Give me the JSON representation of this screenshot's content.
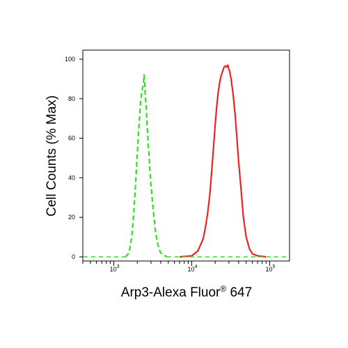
{
  "chart_data": {
    "type": "line",
    "title": "",
    "xlabel": "Arp3-Alexa Fluor",
    "xlabel_superscript": "®",
    "xlabel_suffix": " 647",
    "ylabel": "Cell Counts (% Max)",
    "x_scale": "log",
    "xlim": [
      400,
      180000
    ],
    "ylim": [
      0,
      105
    ],
    "x_ticks": [
      {
        "value": 1000,
        "base": "10",
        "exp": "3"
      },
      {
        "value": 10000,
        "base": "10",
        "exp": "4"
      },
      {
        "value": 100000,
        "base": "10",
        "exp": "5"
      }
    ],
    "y_ticks": [
      0,
      20,
      40,
      60,
      80,
      100
    ],
    "grid": false,
    "series": [
      {
        "color": "#33dd22",
        "style": "dashed",
        "points": [
          [
            1400,
            0
          ],
          [
            1500,
            1
          ],
          [
            1600,
            4
          ],
          [
            1700,
            10
          ],
          [
            1800,
            22
          ],
          [
            1900,
            36
          ],
          [
            2000,
            52
          ],
          [
            2100,
            66
          ],
          [
            2200,
            78
          ],
          [
            2300,
            84
          ],
          [
            2400,
            88
          ],
          [
            2450,
            92
          ],
          [
            2500,
            86
          ],
          [
            2550,
            80
          ],
          [
            2600,
            76
          ],
          [
            2700,
            64
          ],
          [
            2800,
            54
          ],
          [
            2900,
            44
          ],
          [
            3000,
            36
          ],
          [
            3200,
            24
          ],
          [
            3400,
            14
          ],
          [
            3600,
            8
          ],
          [
            3800,
            4
          ],
          [
            4000,
            2
          ],
          [
            4300,
            1
          ],
          [
            4800,
            0
          ]
        ]
      },
      {
        "color": "#ee2222",
        "style": "solid",
        "points": [
          [
            7000,
            0
          ],
          [
            10000,
            0.5
          ],
          [
            12000,
            3
          ],
          [
            14000,
            9
          ],
          [
            15000,
            15
          ],
          [
            16000,
            22
          ],
          [
            17000,
            31
          ],
          [
            18000,
            43
          ],
          [
            19000,
            55
          ],
          [
            20000,
            67
          ],
          [
            21000,
            77
          ],
          [
            22000,
            84
          ],
          [
            23000,
            89
          ],
          [
            24000,
            92
          ],
          [
            25000,
            94
          ],
          [
            26000,
            96
          ],
          [
            27000,
            96.5
          ],
          [
            28000,
            96
          ],
          [
            29000,
            97
          ],
          [
            30000,
            95
          ],
          [
            31000,
            93
          ],
          [
            32000,
            90
          ],
          [
            34000,
            82
          ],
          [
            36000,
            72
          ],
          [
            38000,
            60
          ],
          [
            40000,
            48
          ],
          [
            43000,
            34
          ],
          [
            46000,
            20
          ],
          [
            50000,
            10
          ],
          [
            55000,
            4
          ],
          [
            60000,
            1.5
          ],
          [
            70000,
            0.5
          ],
          [
            90000,
            0
          ]
        ]
      }
    ]
  }
}
